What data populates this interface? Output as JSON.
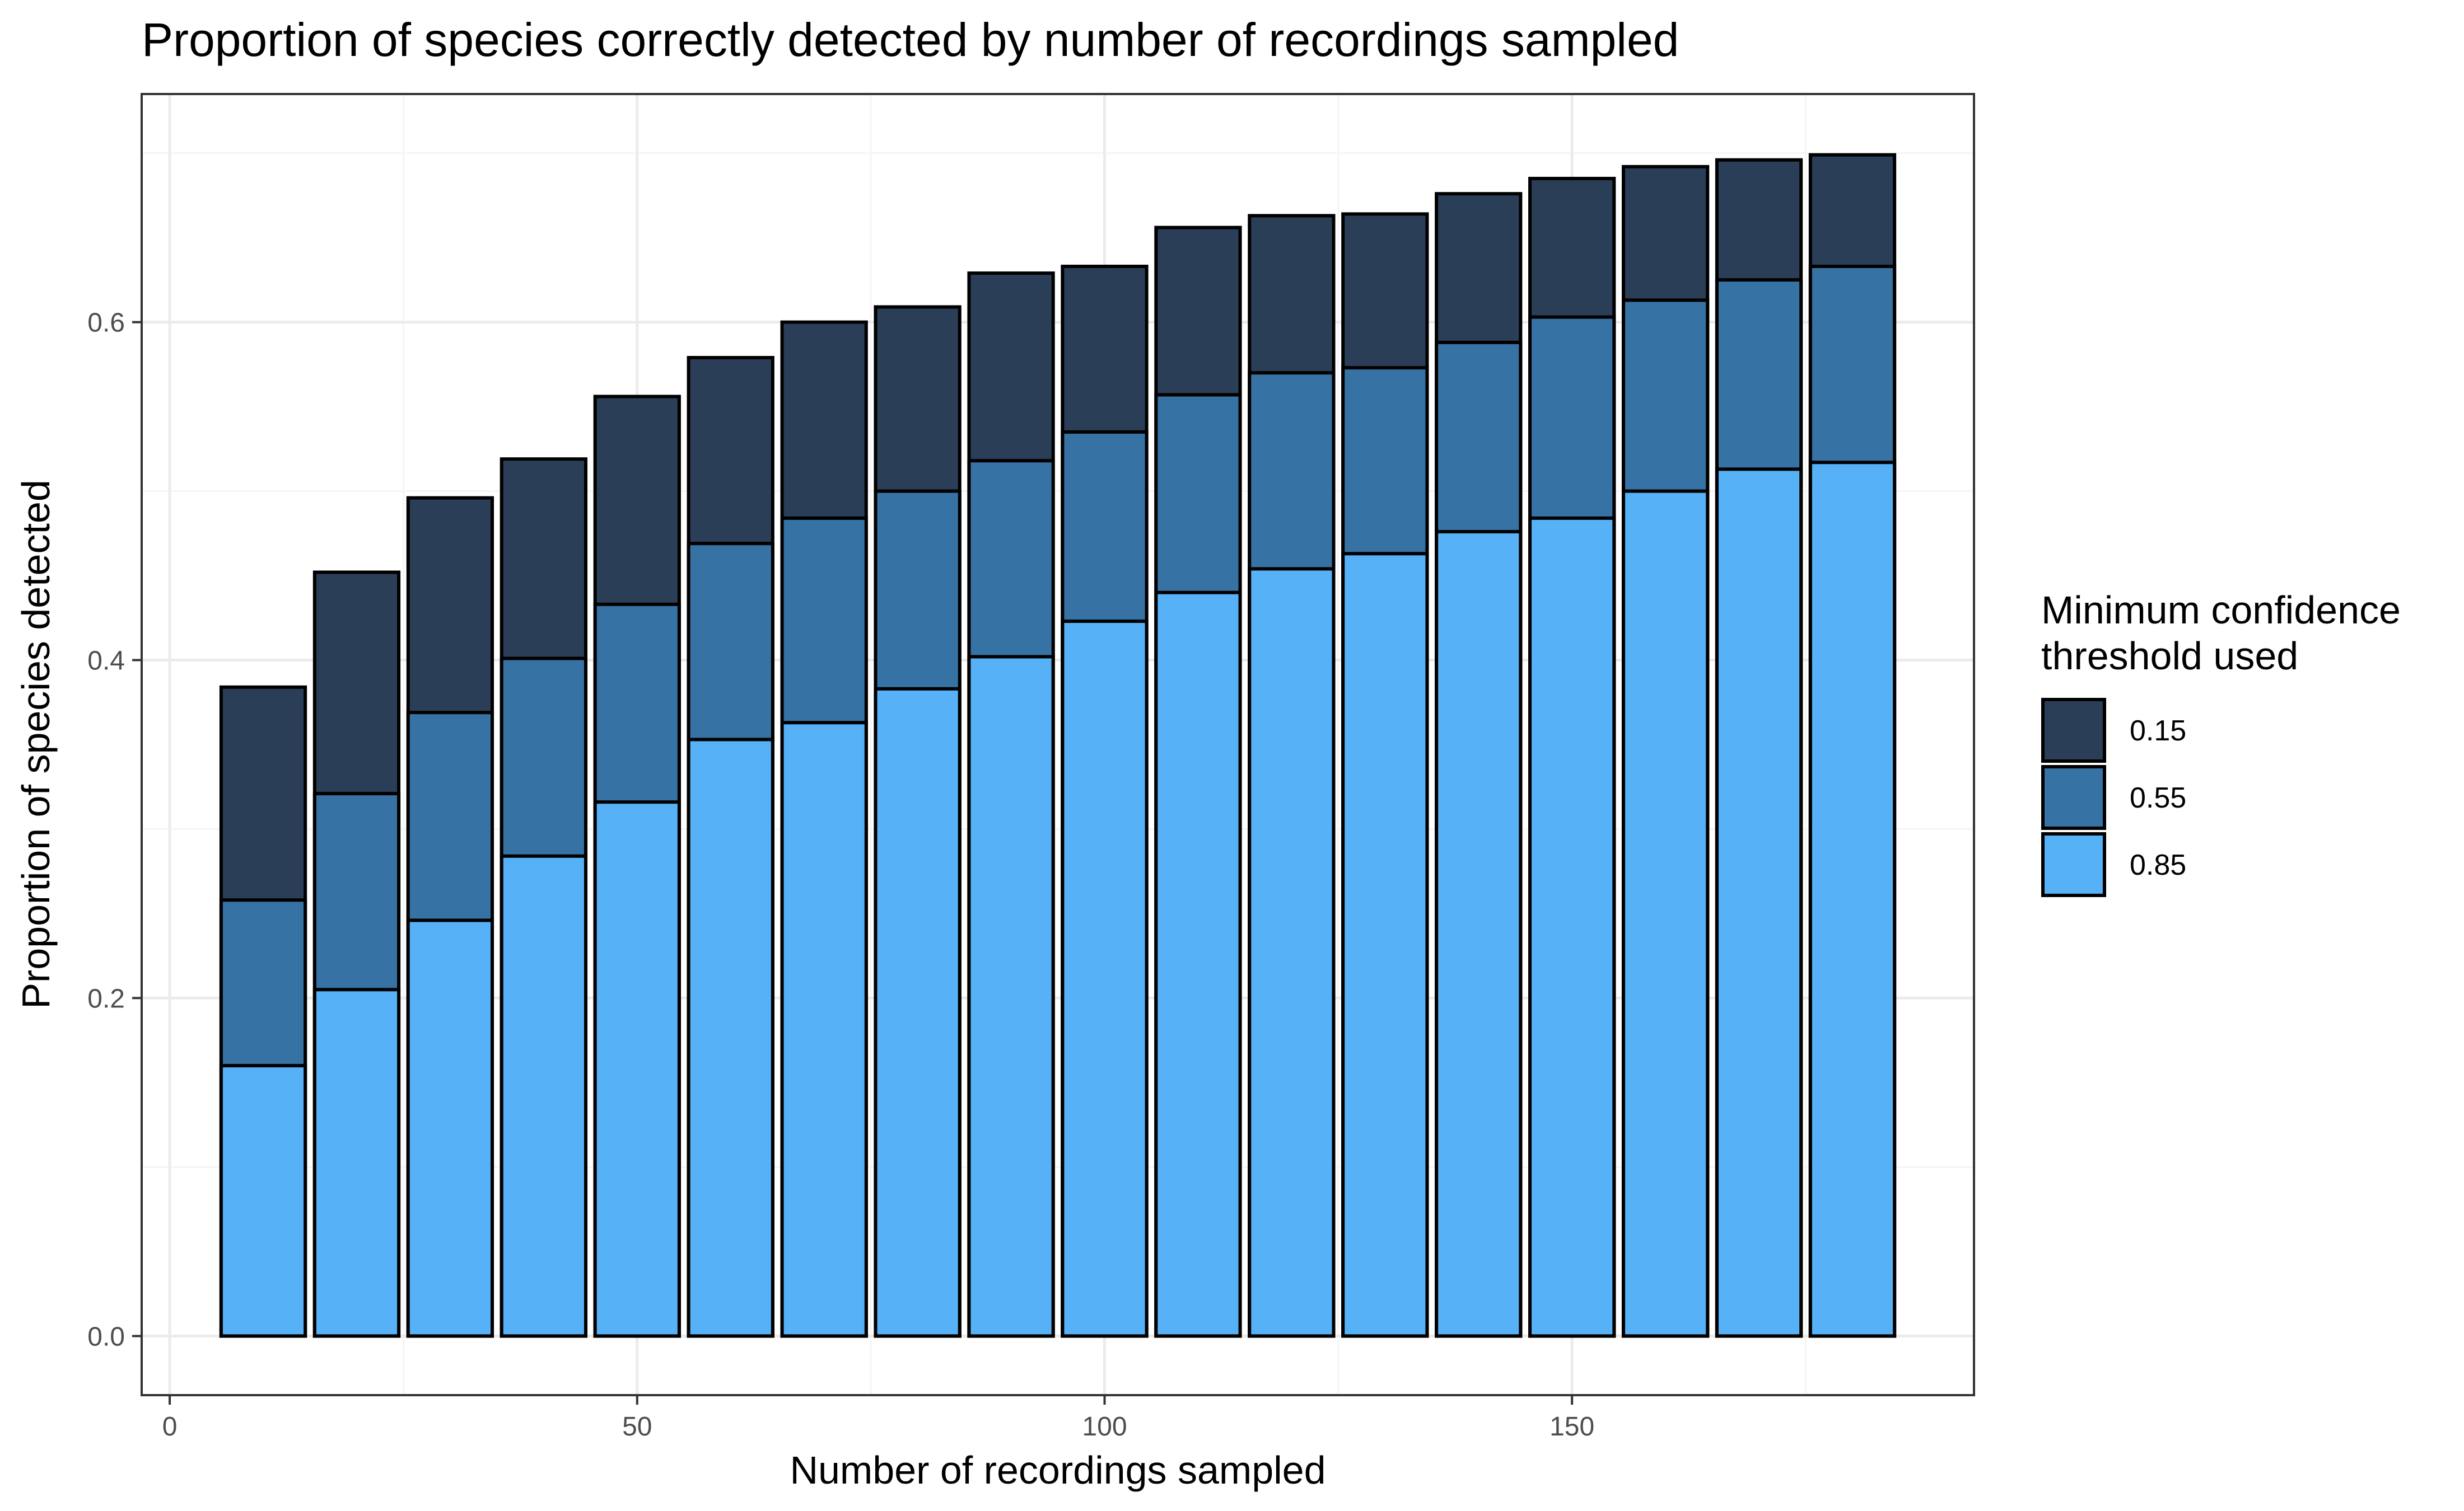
{
  "chart_data": {
    "type": "bar",
    "title": "Proportion of species correctly detected by number of recordings sampled",
    "xlabel": "Number of recordings sampled",
    "ylabel": "Proportion of species detected",
    "xlim": [
      -3,
      193
    ],
    "ylim": [
      -0.035,
      0.735
    ],
    "x_ticks": [
      0,
      50,
      100,
      150
    ],
    "x_tick_labels": [
      "0",
      "50",
      "100",
      "150"
    ],
    "y_ticks": [
      0.0,
      0.2,
      0.4,
      0.6
    ],
    "y_tick_labels": [
      "0.0",
      "0.2",
      "0.4",
      "0.6"
    ],
    "grid": true,
    "legend_position": "right",
    "legend_title": [
      "Minimum confidence",
      "threshold used"
    ],
    "x": [
      10,
      20,
      30,
      40,
      50,
      60,
      70,
      80,
      90,
      100,
      110,
      120,
      130,
      140,
      150,
      160,
      170,
      180
    ],
    "series": [
      {
        "name": "0.15",
        "color": "#2b3e57",
        "values": [
          0.384,
          0.452,
          0.496,
          0.519,
          0.556,
          0.579,
          0.6,
          0.609,
          0.629,
          0.633,
          0.656,
          0.663,
          0.664,
          0.676,
          0.685,
          0.692,
          0.696,
          0.699
        ]
      },
      {
        "name": "0.55",
        "color": "#3672a4",
        "values": [
          0.258,
          0.321,
          0.369,
          0.401,
          0.433,
          0.469,
          0.484,
          0.5,
          0.518,
          0.535,
          0.557,
          0.57,
          0.573,
          0.588,
          0.603,
          0.613,
          0.625,
          0.633
        ]
      },
      {
        "name": "0.85",
        "color": "#56b1f7",
        "values": [
          0.16,
          0.205,
          0.246,
          0.284,
          0.316,
          0.353,
          0.363,
          0.383,
          0.402,
          0.423,
          0.44,
          0.454,
          0.463,
          0.476,
          0.484,
          0.5,
          0.513,
          0.517
        ]
      }
    ]
  }
}
